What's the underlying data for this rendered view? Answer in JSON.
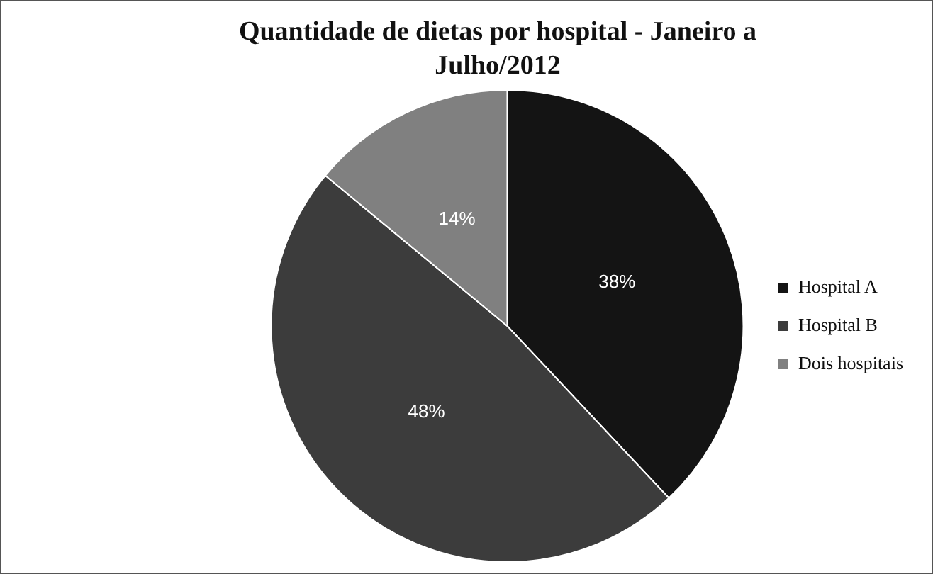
{
  "chart_data": {
    "type": "pie",
    "title": "Quantidade de dietas por hospital - Janeiro a Julho/2012",
    "categories": [
      "Hospital A",
      "Hospital B",
      "Dois hospitais"
    ],
    "values": [
      38,
      48,
      14
    ],
    "value_labels": [
      "38%",
      "48%",
      "14%"
    ],
    "colors": [
      "#141414",
      "#3c3c3c",
      "#808080"
    ],
    "legend": "right"
  }
}
